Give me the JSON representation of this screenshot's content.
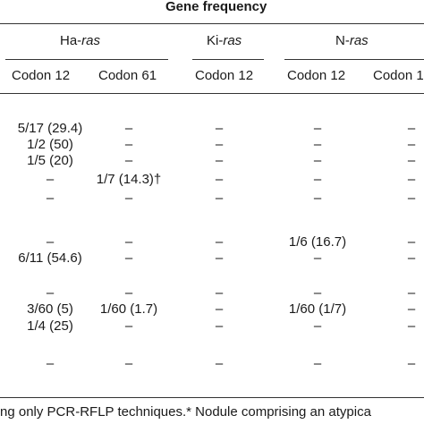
{
  "title": "Gene frequency",
  "genes": [
    {
      "prefix": "Ha-",
      "italic": "ras"
    },
    {
      "prefix": "Ki-",
      "italic": "ras"
    },
    {
      "prefix": "N-",
      "italic": "ras"
    }
  ],
  "codons": [
    "Codon 12",
    "Codon 61",
    "Codon 12",
    "Codon 12",
    "Codon 1"
  ],
  "rows": [
    [
      "5/17 (29.4)",
      "–",
      "–",
      "–",
      "–"
    ],
    [
      "1/2 (50)",
      "–",
      "–",
      "–",
      "–"
    ],
    [
      "1/5 (20)",
      "–",
      "–",
      "–",
      "–"
    ],
    [
      "–",
      "1/7 (14.3)†",
      "–",
      "–",
      "–"
    ],
    [
      "–",
      "–",
      "–",
      "–",
      "–"
    ],
    [
      "–",
      "–",
      "–",
      "1/6 (16.7)",
      "–"
    ],
    [
      "6/11 (54.6)",
      "–",
      "–",
      "–",
      "–"
    ],
    [
      "–",
      "–",
      "–",
      "–",
      "–"
    ],
    [
      "3/60 (5)",
      "1/60 (1.7)",
      "–",
      "1/60 (1/7)",
      "–"
    ],
    [
      "1/4 (25)",
      "–",
      "–",
      "–",
      "–"
    ],
    [
      "–",
      "–",
      "–",
      "–",
      "–"
    ]
  ],
  "footnote": "ng only PCR-RFLP techniques.* Nodule comprising an atypica"
}
